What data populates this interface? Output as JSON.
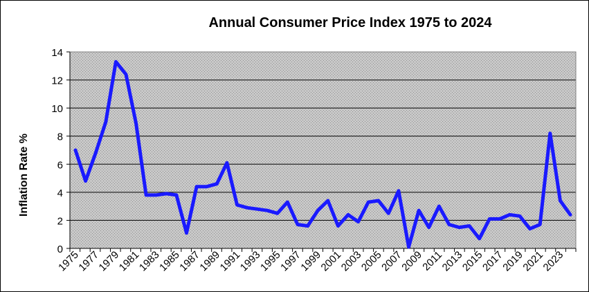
{
  "chart_data": {
    "type": "line",
    "title": "Annual Consumer Price Index 1975 to 2024",
    "xlabel": "",
    "ylabel": "Inflation Rate %",
    "xlim": [
      1975,
      2024
    ],
    "ylim": [
      0,
      14
    ],
    "yticks": [
      0,
      2,
      4,
      6,
      8,
      10,
      12,
      14
    ],
    "xtick_labels": [
      "1975",
      "1977",
      "1979",
      "1981",
      "1983",
      "1985",
      "1987",
      "1989",
      "1991",
      "1993",
      "1995",
      "1997",
      "1999",
      "2001",
      "2003",
      "2005",
      "2007",
      "2009",
      "2011",
      "2013",
      "2015",
      "2017",
      "2019",
      "2021",
      "2023"
    ],
    "grid": true,
    "background": "stippled-grey",
    "line_color": "#1a1aff",
    "x": [
      1975,
      1976,
      1977,
      1978,
      1979,
      1980,
      1981,
      1982,
      1983,
      1984,
      1985,
      1986,
      1987,
      1988,
      1989,
      1990,
      1991,
      1992,
      1993,
      1994,
      1995,
      1996,
      1997,
      1998,
      1999,
      2000,
      2001,
      2002,
      2003,
      2004,
      2005,
      2006,
      2007,
      2008,
      2009,
      2010,
      2011,
      2012,
      2013,
      2014,
      2015,
      2016,
      2017,
      2018,
      2019,
      2020,
      2021,
      2022,
      2023,
      2024
    ],
    "series": [
      {
        "values": [
          7.0,
          4.8,
          6.8,
          9.0,
          13.3,
          12.4,
          8.9,
          3.8,
          3.8,
          3.9,
          3.8,
          1.1,
          4.4,
          4.4,
          4.6,
          6.1,
          3.1,
          2.9,
          2.8,
          2.7,
          2.5,
          3.3,
          1.7,
          1.6,
          2.7,
          3.4,
          1.6,
          2.4,
          1.9,
          3.3,
          3.4,
          2.5,
          4.1,
          0.1,
          2.7,
          1.5,
          3.0,
          1.7,
          1.5,
          1.6,
          0.7,
          2.1,
          2.1,
          2.4,
          2.3,
          1.4,
          1.7,
          8.2,
          3.4,
          2.4
        ]
      }
    ]
  }
}
